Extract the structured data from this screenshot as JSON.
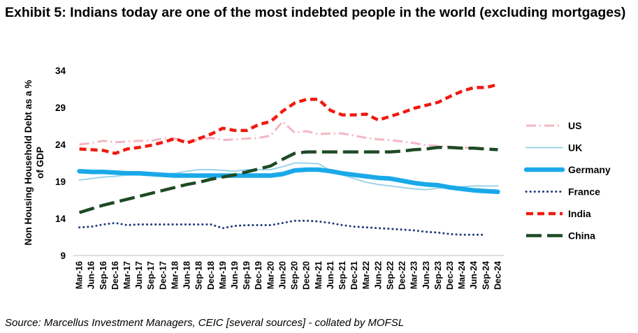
{
  "title": "Exhibit 5: Indians today are one of the most indebted people in the world (excluding mortgages)",
  "source": "Source: Marcellus Investment Managers, CEIC [several sources] - collated by MOFSL",
  "chart_data": {
    "type": "line",
    "title": "",
    "xlabel": "",
    "ylabel": "Non Housing Household Debt as a % of GDP",
    "ylabel_lines": [
      "Non Housing Household Debt as a %",
      "of GDP"
    ],
    "ylim": [
      9,
      34
    ],
    "yticks": [
      9,
      14,
      19,
      24,
      29,
      34
    ],
    "grid": false,
    "legend_position": "right",
    "categories": [
      "Mar-16",
      "Jun-16",
      "Sep-16",
      "Dec-16",
      "Mar-17",
      "Jun-17",
      "Sep-17",
      "Dec-17",
      "Mar-18",
      "Jun-18",
      "Sep-18",
      "Dec-18",
      "Mar-19",
      "Jun-19",
      "Sep-19",
      "Dec-19",
      "Mar-20",
      "Jun-20",
      "Sep-20",
      "Dec-20",
      "Mar-21",
      "Jun-21",
      "Sep-21",
      "Dec-21",
      "Mar-22",
      "Jun-22",
      "Sep-22",
      "Dec-22",
      "Mar-23",
      "Jun-23",
      "Sep-23",
      "Dec-23",
      "Mar-24",
      "Jun-24",
      "Sep-24",
      "Dec-24"
    ],
    "series": [
      {
        "name": "US",
        "color": "#f4b6c2",
        "dash": "long-dash-dot",
        "values": [
          24.0,
          24.2,
          24.5,
          24.3,
          24.4,
          24.5,
          24.5,
          24.8,
          24.8,
          24.4,
          24.6,
          24.9,
          24.6,
          24.7,
          24.8,
          24.9,
          25.2,
          27.1,
          25.6,
          25.8,
          25.4,
          25.5,
          25.5,
          25.2,
          24.9,
          24.7,
          24.6,
          24.4,
          24.2,
          23.9,
          23.8,
          23.7,
          23.6,
          23.5,
          null,
          null
        ]
      },
      {
        "name": "UK",
        "color": "#9dd3ea",
        "dash": "solid-thin",
        "values": [
          19.2,
          19.4,
          19.6,
          19.7,
          19.9,
          20.0,
          20.0,
          20.0,
          20.1,
          20.4,
          20.6,
          20.6,
          20.5,
          20.4,
          20.6,
          20.6,
          20.6,
          21.0,
          21.5,
          21.5,
          21.4,
          20.5,
          19.9,
          19.4,
          18.9,
          18.6,
          18.4,
          18.2,
          18.0,
          17.9,
          18.1,
          18.2,
          18.3,
          18.4,
          18.4,
          18.4
        ]
      },
      {
        "name": "Germany",
        "color": "#1aa9e8",
        "dash": "solid-thick",
        "values": [
          20.4,
          20.3,
          20.3,
          20.2,
          20.1,
          20.1,
          20.0,
          19.9,
          19.8,
          19.8,
          19.8,
          19.8,
          19.8,
          19.8,
          19.8,
          19.8,
          19.8,
          20.0,
          20.5,
          20.6,
          20.6,
          20.4,
          20.1,
          19.9,
          19.7,
          19.5,
          19.4,
          19.1,
          18.8,
          18.6,
          18.5,
          18.2,
          18.0,
          17.8,
          17.7,
          17.6
        ]
      },
      {
        "name": "France",
        "color": "#1f3a7a",
        "dash": "dotted",
        "values": [
          12.8,
          12.9,
          13.2,
          13.4,
          13.1,
          13.2,
          13.2,
          13.2,
          13.2,
          13.2,
          13.2,
          13.2,
          12.7,
          13.0,
          13.1,
          13.1,
          13.1,
          13.4,
          13.7,
          13.7,
          13.6,
          13.4,
          13.1,
          12.9,
          12.8,
          12.7,
          12.6,
          12.5,
          12.4,
          12.2,
          12.1,
          11.9,
          11.8,
          11.8,
          11.8,
          null
        ]
      },
      {
        "name": "India",
        "color": "#f0190f",
        "dash": "dashed",
        "values": [
          23.4,
          23.3,
          23.2,
          22.8,
          23.4,
          23.6,
          23.9,
          24.3,
          24.8,
          24.2,
          24.8,
          25.4,
          26.2,
          25.9,
          25.9,
          26.7,
          27.1,
          28.5,
          29.6,
          30.1,
          30.1,
          28.6,
          28.0,
          28.0,
          28.1,
          27.3,
          27.8,
          28.3,
          28.9,
          29.3,
          29.7,
          30.5,
          31.2,
          31.7,
          31.7,
          32.1
        ]
      },
      {
        "name": "China",
        "color": "#1d4a24",
        "dash": "long-dash",
        "values": [
          14.8,
          15.3,
          15.8,
          16.2,
          16.6,
          17.0,
          17.4,
          17.8,
          18.2,
          18.6,
          18.9,
          19.3,
          19.6,
          19.9,
          20.3,
          20.7,
          21.1,
          22.0,
          22.8,
          23.0,
          23.0,
          23.0,
          23.0,
          23.0,
          23.0,
          23.0,
          23.0,
          23.1,
          23.3,
          23.4,
          23.6,
          23.6,
          23.5,
          23.5,
          23.4,
          23.3
        ]
      }
    ]
  }
}
